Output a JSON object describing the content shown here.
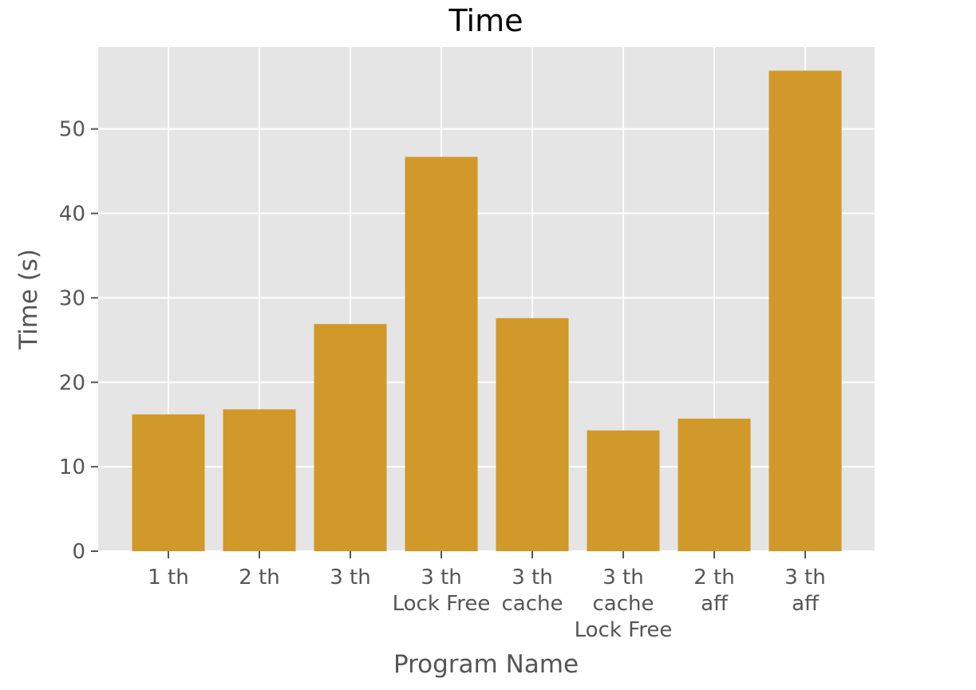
{
  "chart_data": {
    "type": "bar",
    "title": "Time",
    "xlabel": "Program Name",
    "ylabel": "Time (s)",
    "categories": [
      "1 th",
      "2 th",
      "3 th",
      "3 th\nLock Free",
      "3 th\ncache",
      "3 th\ncache\nLock Free",
      "2 th\naff",
      "3 th\naff"
    ],
    "values": [
      16.2,
      16.8,
      26.9,
      46.7,
      27.6,
      14.3,
      15.7,
      56.9
    ],
    "ylim": [
      0,
      59.7
    ],
    "yticks": [
      0,
      10,
      20,
      30,
      40,
      50
    ],
    "bar_color": "#d0992a",
    "background_color": "#e5e5e5",
    "grid": true
  }
}
